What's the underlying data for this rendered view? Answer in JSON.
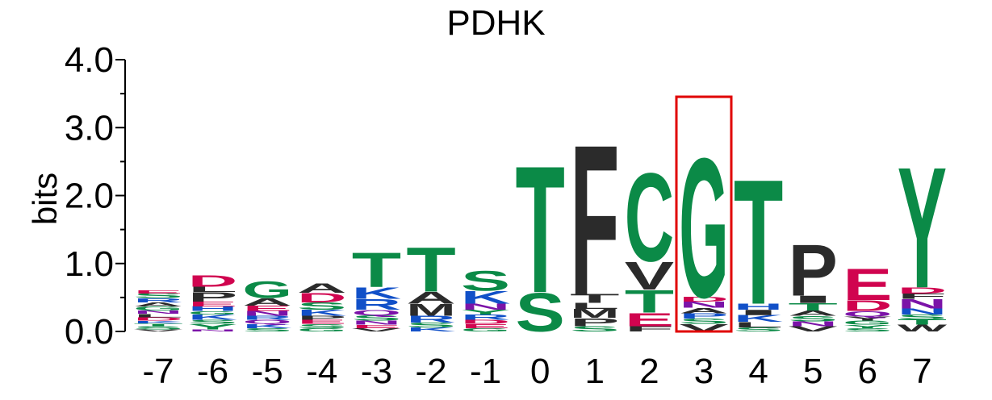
{
  "chart_data": {
    "type": "sequence-logo",
    "title": "PDHK",
    "ylabel": "bits",
    "ylim": [
      0,
      4
    ],
    "yticks": [
      "0.0",
      "1.0",
      "2.0",
      "3.0",
      "4.0"
    ],
    "highlight_position": "3",
    "colors": {
      "green": "#0b8a47",
      "black": "#2b2b2b",
      "blue": "#1150c8",
      "red": "#d0044f",
      "purple": "#7b13a8",
      "highlight": "#e00000"
    },
    "positions": [
      {
        "label": "-7",
        "stack": [
          [
            "V",
            0.03,
            "black"
          ],
          [
            "S",
            0.05,
            "green"
          ],
          [
            "T",
            0.04,
            "green"
          ],
          [
            "K",
            0.04,
            "blue"
          ],
          [
            "D",
            0.05,
            "red"
          ],
          [
            "L",
            0.05,
            "black"
          ],
          [
            "N",
            0.05,
            "purple"
          ],
          [
            "G",
            0.06,
            "green"
          ],
          [
            "A",
            0.06,
            "black"
          ],
          [
            "R",
            0.06,
            "blue"
          ],
          [
            "S",
            0.07,
            "green"
          ],
          [
            "E",
            0.05,
            "red"
          ]
        ]
      },
      {
        "label": "-6",
        "stack": [
          [
            "N",
            0.03,
            "purple"
          ],
          [
            "Y",
            0.08,
            "green"
          ],
          [
            "S",
            0.06,
            "green"
          ],
          [
            "K",
            0.08,
            "blue"
          ],
          [
            "G",
            0.05,
            "green"
          ],
          [
            "H",
            0.07,
            "blue"
          ],
          [
            "E",
            0.07,
            "red"
          ],
          [
            "P",
            0.14,
            "black"
          ],
          [
            "L",
            0.08,
            "black"
          ],
          [
            "D",
            0.17,
            "red"
          ]
        ]
      },
      {
        "label": "-5",
        "stack": [
          [
            "S",
            0.05,
            "green"
          ],
          [
            "K",
            0.06,
            "blue"
          ],
          [
            "Q",
            0.06,
            "purple"
          ],
          [
            "R",
            0.06,
            "blue"
          ],
          [
            "N",
            0.07,
            "purple"
          ],
          [
            "E",
            0.08,
            "red"
          ],
          [
            "A",
            0.11,
            "black"
          ],
          [
            "G",
            0.25,
            "green"
          ]
        ]
      },
      {
        "label": "-4",
        "stack": [
          [
            "G",
            0.05,
            "green"
          ],
          [
            "S",
            0.06,
            "green"
          ],
          [
            "E",
            0.06,
            "red"
          ],
          [
            "P",
            0.06,
            "black"
          ],
          [
            "K",
            0.09,
            "blue"
          ],
          [
            "S",
            0.11,
            "green"
          ],
          [
            "D",
            0.14,
            "red"
          ],
          [
            "A",
            0.14,
            "black"
          ]
        ]
      },
      {
        "label": "-3",
        "stack": [
          [
            "V",
            0.05,
            "black"
          ],
          [
            "E",
            0.05,
            "red"
          ],
          [
            "N",
            0.06,
            "purple"
          ],
          [
            "S",
            0.08,
            "green"
          ],
          [
            "Q",
            0.08,
            "purple"
          ],
          [
            "R",
            0.16,
            "blue"
          ],
          [
            "K",
            0.17,
            "blue"
          ],
          [
            "T",
            0.52,
            "green"
          ]
        ]
      },
      {
        "label": "-2",
        "stack": [
          [
            "K",
            0.06,
            "blue"
          ],
          [
            "S",
            0.07,
            "green"
          ],
          [
            "R",
            0.1,
            "blue"
          ],
          [
            "M",
            0.18,
            "black"
          ],
          [
            "A",
            0.18,
            "black"
          ],
          [
            "T",
            0.67,
            "green"
          ]
        ]
      },
      {
        "label": "-1",
        "stack": [
          [
            "G",
            0.05,
            "green"
          ],
          [
            "E",
            0.06,
            "red"
          ],
          [
            "D",
            0.06,
            "red"
          ],
          [
            "R",
            0.08,
            "blue"
          ],
          [
            "Y",
            0.07,
            "green"
          ],
          [
            "N",
            0.09,
            "purple"
          ],
          [
            "K",
            0.19,
            "blue"
          ],
          [
            "S",
            0.3,
            "green"
          ]
        ]
      },
      {
        "label": "0",
        "stack": [
          [
            "S",
            0.58,
            "green"
          ],
          [
            "T",
            1.91,
            "green"
          ]
        ]
      },
      {
        "label": "1",
        "stack": [
          [
            "S",
            0.08,
            "green"
          ],
          [
            "P",
            0.12,
            "black"
          ],
          [
            "M",
            0.13,
            "black"
          ],
          [
            "L",
            0.09,
            "black"
          ],
          [
            "T",
            0.13,
            "black"
          ],
          [
            "F",
            2.26,
            "black"
          ]
        ]
      },
      {
        "label": "2",
        "stack": [
          [
            "F",
            0.08,
            "black"
          ],
          [
            "E",
            0.2,
            "red"
          ],
          [
            "T",
            0.34,
            "green"
          ],
          [
            "V",
            0.42,
            "black"
          ],
          [
            "C",
            1.33,
            "green"
          ]
        ]
      },
      {
        "label": "3",
        "stack": [
          [
            "V",
            0.11,
            "black"
          ],
          [
            "S",
            0.08,
            "green"
          ],
          [
            "P",
            0.08,
            "blue"
          ],
          [
            "A",
            0.08,
            "black"
          ],
          [
            "N",
            0.09,
            "purple"
          ],
          [
            "D",
            0.07,
            "red"
          ],
          [
            "G",
            2.1,
            "green"
          ]
        ]
      },
      {
        "label": "4",
        "stack": [
          [
            "S",
            0.06,
            "green"
          ],
          [
            "L",
            0.08,
            "black"
          ],
          [
            "K",
            0.1,
            "blue"
          ],
          [
            "I",
            0.08,
            "black"
          ],
          [
            "H",
            0.09,
            "blue"
          ],
          [
            "T",
            1.88,
            "green"
          ]
        ]
      },
      {
        "label": "5",
        "stack": [
          [
            "V",
            0.08,
            "black"
          ],
          [
            "N",
            0.07,
            "purple"
          ],
          [
            "S",
            0.08,
            "green"
          ],
          [
            "A",
            0.08,
            "black"
          ],
          [
            "T",
            0.11,
            "green"
          ],
          [
            "I",
            0.11,
            "black"
          ],
          [
            "P",
            0.77,
            "black"
          ]
        ]
      },
      {
        "label": "6",
        "stack": [
          [
            "S",
            0.05,
            "green"
          ],
          [
            "Y",
            0.05,
            "green"
          ],
          [
            "G",
            0.06,
            "green"
          ],
          [
            "Y",
            0.06,
            "black"
          ],
          [
            "Q",
            0.08,
            "purple"
          ],
          [
            "D",
            0.16,
            "red"
          ],
          [
            "E",
            0.47,
            "red"
          ]
        ]
      },
      {
        "label": "7",
        "stack": [
          [
            "W",
            0.1,
            "black"
          ],
          [
            "T",
            0.08,
            "green"
          ],
          [
            "S",
            0.07,
            "green"
          ],
          [
            "N",
            0.09,
            "blue"
          ],
          [
            "N",
            0.14,
            "purple"
          ],
          [
            "F",
            0.08,
            "black"
          ],
          [
            "D",
            0.09,
            "red"
          ],
          [
            "Y",
            1.82,
            "green"
          ]
        ]
      }
    ]
  }
}
